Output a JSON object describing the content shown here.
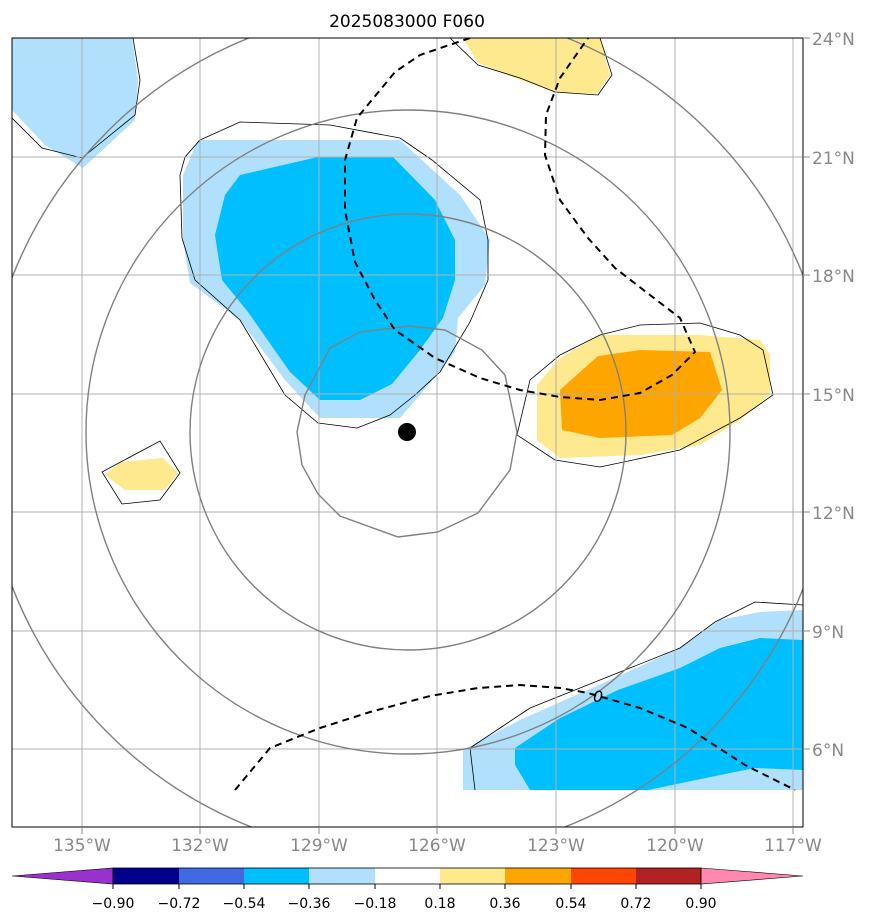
{
  "map": {
    "title": "2025083000 F060",
    "lon_labels": [
      "135°W",
      "132°W",
      "129°W",
      "126°W",
      "123°W",
      "120°W",
      "117°W"
    ],
    "lat_labels": [
      "24°N",
      "21°N",
      "18°N",
      "15°N",
      "12°N",
      "9°N",
      "6°N"
    ],
    "contour_label": "0",
    "colors": {
      "light_blue": "#b0e0fb",
      "cyan": "#00bfff",
      "light_yellow": "#ffe98e",
      "orange": "#ffa500",
      "grid": "#b0b0b0",
      "ring": "#808080",
      "tick_text": "#888888"
    }
  },
  "colorbar": {
    "labels": [
      "−0.90",
      "−0.72",
      "−0.54",
      "−0.36",
      "−0.18",
      "0.18",
      "0.36",
      "0.54",
      "0.72",
      "0.90"
    ],
    "colors": [
      "#9932cc",
      "#00008b",
      "#4169e1",
      "#00bfff",
      "#b0e0fb",
      "#ffffff",
      "#ffe98e",
      "#ffa500",
      "#ff4500",
      "#b22222",
      "#ff88b0"
    ]
  }
}
